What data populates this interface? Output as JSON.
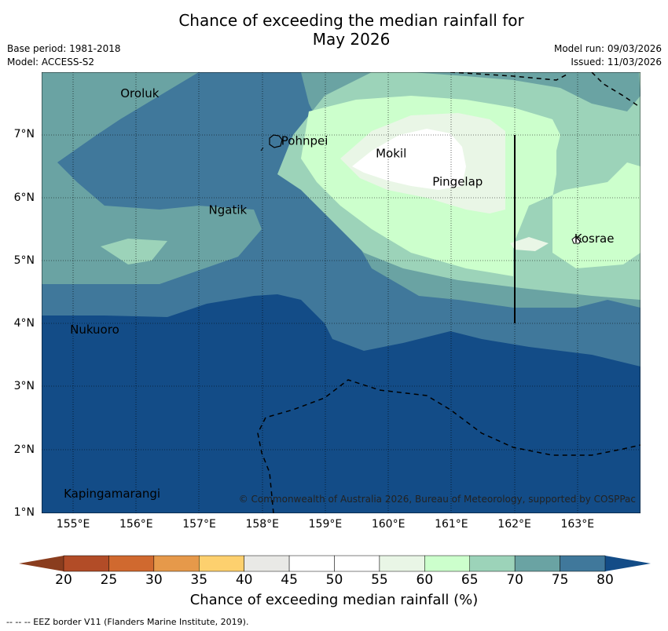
{
  "title": {
    "line1": "Chance of exceeding the median rainfall for",
    "line2": "May 2026"
  },
  "meta_left": {
    "base_period": "Base period: 1981-2018",
    "model": "Model: ACCESS-S2"
  },
  "meta_right": {
    "model_run": "Model run: 09/03/2026",
    "issued": "Issued: 11/03/2026"
  },
  "map": {
    "lon_range": [
      154.5,
      164.0
    ],
    "lat_range": [
      1.0,
      8.0
    ],
    "x_ticks": [
      "155°E",
      "156°E",
      "157°E",
      "158°E",
      "159°E",
      "160°E",
      "161°E",
      "162°E",
      "163°E"
    ],
    "y_ticks": [
      "7°N",
      "6°N",
      "5°N",
      "4°N",
      "3°N",
      "2°N",
      "1°N"
    ],
    "places": [
      {
        "name": "Oroluk",
        "lon": 155.75,
        "lat": 7.6
      },
      {
        "name": "Pohnpei",
        "lon": 158.3,
        "lat": 6.85
      },
      {
        "name": "Ngatik",
        "lon": 157.15,
        "lat": 5.75
      },
      {
        "name": "Mokil",
        "lon": 159.8,
        "lat": 6.65
      },
      {
        "name": "Pingelap",
        "lon": 160.7,
        "lat": 6.2
      },
      {
        "name": "Kosrae",
        "lon": 162.95,
        "lat": 5.3
      },
      {
        "name": "Nukuoro",
        "lon": 154.95,
        "lat": 3.85
      },
      {
        "name": "Kapingamarangi",
        "lon": 154.85,
        "lat": 1.25
      }
    ],
    "credit": "© Commonwealth of Australia 2026, Bureau of Meteorology, supported by COSPPac"
  },
  "colorbar": {
    "ticks": [
      "20",
      "25",
      "30",
      "35",
      "40",
      "45",
      "50",
      "55",
      "60",
      "65",
      "70",
      "75",
      "80"
    ],
    "colors": [
      "#b24c27",
      "#d0692f",
      "#e6994a",
      "#fdd06e",
      "#e9e9e6",
      "#ffffff",
      "#ffffff",
      "#e9f6e6",
      "#ccffcc",
      "#9cd3b9",
      "#6aa3a3",
      "#40789b",
      "#134c87"
    ],
    "extend_low": "#8a3d1e",
    "extend_high": "#134c87",
    "label": "Chance of exceeding median rainfall (%)"
  },
  "legend_note": "-- -- -- EEZ border V11 (Flanders Marine Institute, 2019).",
  "levels": {
    "c75": "#134c87",
    "c70": "#40789b",
    "c65": "#6aa3a3",
    "c60": "#9cd3b9",
    "c55": "#ccffcc",
    "c50": "#e9f6e6",
    "c45": "#ffffff"
  }
}
